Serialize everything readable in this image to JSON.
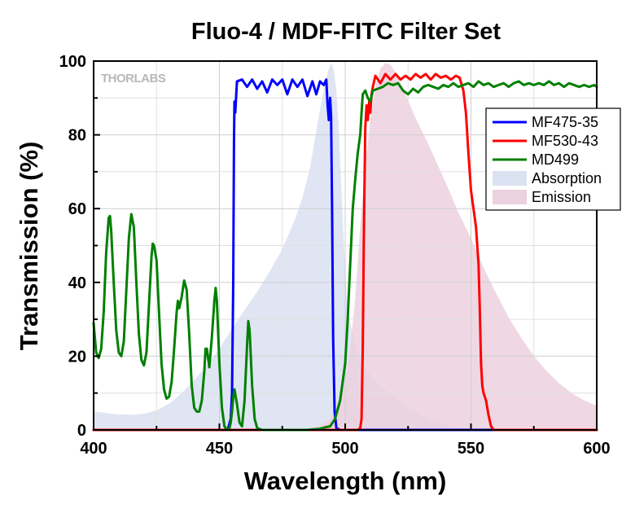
{
  "watermark": "THORLABS",
  "chart_data": {
    "type": "line",
    "title": "Fluo-4 / MDF-FITC Filter Set",
    "xlabel": "Wavelength (nm)",
    "ylabel": "Transmission (%)",
    "xlim": [
      400,
      600
    ],
    "ylim": [
      0,
      100
    ],
    "xticks": [
      400,
      450,
      500,
      550,
      600
    ],
    "yticks": [
      0,
      20,
      40,
      60,
      80,
      100
    ],
    "grid": true,
    "legend_position": "right",
    "series": [
      {
        "name": "MF475-35",
        "kind": "line",
        "color": "#0000ff",
        "points": [
          [
            400,
            0
          ],
          [
            452,
            0
          ],
          [
            453.5,
            0.5
          ],
          [
            454.5,
            3
          ],
          [
            455,
            10
          ],
          [
            455.5,
            40
          ],
          [
            455.8,
            78
          ],
          [
            456,
            89
          ],
          [
            456.3,
            86
          ],
          [
            456.7,
            91
          ],
          [
            457,
            94.5
          ],
          [
            459,
            95
          ],
          [
            461,
            93
          ],
          [
            463,
            95
          ],
          [
            465,
            92.5
          ],
          [
            467,
            94.5
          ],
          [
            469,
            91.5
          ],
          [
            471,
            95
          ],
          [
            473,
            93.5
          ],
          [
            475,
            95
          ],
          [
            477,
            91
          ],
          [
            479,
            95
          ],
          [
            481,
            93
          ],
          [
            483,
            95
          ],
          [
            485,
            90.5
          ],
          [
            487,
            94.5
          ],
          [
            488.5,
            91
          ],
          [
            490,
            94.5
          ],
          [
            491.5,
            93.5
          ],
          [
            492.5,
            95
          ],
          [
            493,
            88
          ],
          [
            493.5,
            84
          ],
          [
            494,
            90
          ],
          [
            494.4,
            85
          ],
          [
            494.8,
            60
          ],
          [
            495.2,
            25
          ],
          [
            495.8,
            5
          ],
          [
            496.5,
            0.5
          ],
          [
            498,
            0
          ],
          [
            600,
            0
          ]
        ]
      },
      {
        "name": "MF530-43",
        "kind": "line",
        "color": "#ff0000",
        "points": [
          [
            400,
            0
          ],
          [
            505,
            0
          ],
          [
            506,
            0.5
          ],
          [
            506.5,
            3
          ],
          [
            507,
            22
          ],
          [
            507.5,
            58
          ],
          [
            508,
            82
          ],
          [
            508.5,
            88
          ],
          [
            509,
            84
          ],
          [
            509.5,
            89
          ],
          [
            510,
            86
          ],
          [
            510.5,
            91
          ],
          [
            511,
            93
          ],
          [
            512,
            96
          ],
          [
            514,
            94
          ],
          [
            516,
            96.5
          ],
          [
            518,
            95
          ],
          [
            520,
            96.5
          ],
          [
            522,
            95
          ],
          [
            524,
            96
          ],
          [
            526,
            95
          ],
          [
            528,
            96.5
          ],
          [
            530,
            95.5
          ],
          [
            532,
            96.5
          ],
          [
            534,
            95
          ],
          [
            536,
            96.5
          ],
          [
            538,
            95.5
          ],
          [
            540,
            96
          ],
          [
            542,
            95
          ],
          [
            544,
            96
          ],
          [
            545.5,
            95.5
          ],
          [
            547,
            92
          ],
          [
            548,
            86
          ],
          [
            549,
            75
          ],
          [
            550,
            65
          ],
          [
            551,
            60
          ],
          [
            552,
            55
          ],
          [
            553,
            45
          ],
          [
            553.5,
            33
          ],
          [
            554,
            18
          ],
          [
            554.5,
            12
          ],
          [
            555,
            10
          ],
          [
            556,
            8
          ],
          [
            557,
            4
          ],
          [
            558,
            1
          ],
          [
            559,
            0
          ],
          [
            600,
            0
          ]
        ]
      },
      {
        "name": "MD499",
        "kind": "line",
        "color": "#008000",
        "points": [
          [
            400,
            29
          ],
          [
            401,
            21
          ],
          [
            402,
            19.5
          ],
          [
            403,
            22
          ],
          [
            404,
            32
          ],
          [
            405,
            48
          ],
          [
            406,
            57.5
          ],
          [
            406.5,
            58
          ],
          [
            407,
            54
          ],
          [
            408,
            40
          ],
          [
            409,
            27
          ],
          [
            410,
            21
          ],
          [
            411,
            20
          ],
          [
            412,
            24
          ],
          [
            413,
            38
          ],
          [
            414,
            52
          ],
          [
            415,
            58.5
          ],
          [
            416,
            55
          ],
          [
            417,
            40
          ],
          [
            418,
            26
          ],
          [
            419,
            19
          ],
          [
            420,
            17.5
          ],
          [
            421,
            21
          ],
          [
            422,
            34
          ],
          [
            423,
            47
          ],
          [
            423.5,
            50.5
          ],
          [
            424,
            50
          ],
          [
            425,
            46
          ],
          [
            426,
            32
          ],
          [
            427,
            18
          ],
          [
            428,
            11
          ],
          [
            429,
            8.5
          ],
          [
            430,
            9
          ],
          [
            431,
            13
          ],
          [
            432,
            22
          ],
          [
            433,
            32
          ],
          [
            433.5,
            35
          ],
          [
            434,
            33
          ],
          [
            435,
            36
          ],
          [
            436,
            40.5
          ],
          [
            437,
            38
          ],
          [
            438,
            26
          ],
          [
            439,
            12
          ],
          [
            440,
            6
          ],
          [
            441,
            5
          ],
          [
            442,
            5
          ],
          [
            443,
            8
          ],
          [
            444,
            16
          ],
          [
            444.5,
            22
          ],
          [
            445,
            22
          ],
          [
            446,
            17
          ],
          [
            447,
            25
          ],
          [
            448,
            35
          ],
          [
            448.5,
            38.5
          ],
          [
            449,
            35
          ],
          [
            450,
            18
          ],
          [
            451,
            6
          ],
          [
            452,
            1
          ],
          [
            453,
            0
          ],
          [
            454,
            0.5
          ],
          [
            454.5,
            2
          ],
          [
            455,
            5
          ],
          [
            455.5,
            9
          ],
          [
            456,
            11
          ],
          [
            457,
            7
          ],
          [
            458,
            2
          ],
          [
            459,
            1
          ],
          [
            460,
            8
          ],
          [
            461,
            23
          ],
          [
            461.5,
            29.5
          ],
          [
            462,
            27
          ],
          [
            463,
            12
          ],
          [
            464,
            3
          ],
          [
            465,
            0.5
          ],
          [
            467,
            0
          ],
          [
            485,
            0
          ],
          [
            490,
            0.3
          ],
          [
            492,
            0.7
          ],
          [
            494,
            1
          ],
          [
            496,
            3
          ],
          [
            498,
            8
          ],
          [
            500,
            18
          ],
          [
            501,
            30
          ],
          [
            502,
            45
          ],
          [
            503,
            60
          ],
          [
            504,
            68
          ],
          [
            505,
            75
          ],
          [
            506,
            80
          ],
          [
            506.5,
            86
          ],
          [
            507,
            91
          ],
          [
            508,
            92
          ],
          [
            509,
            90
          ],
          [
            510,
            89
          ],
          [
            511,
            92
          ],
          [
            513,
            92.5
          ],
          [
            515,
            93
          ],
          [
            517,
            94
          ],
          [
            519,
            93.5
          ],
          [
            521,
            94
          ],
          [
            523,
            92
          ],
          [
            525,
            91
          ],
          [
            527,
            92.5
          ],
          [
            529,
            91.5
          ],
          [
            531,
            93
          ],
          [
            533,
            93.5
          ],
          [
            535,
            93
          ],
          [
            537,
            92.5
          ],
          [
            539,
            93.5
          ],
          [
            541,
            93
          ],
          [
            543,
            94
          ],
          [
            545,
            93
          ],
          [
            547,
            93.5
          ],
          [
            549,
            94
          ],
          [
            551,
            93
          ],
          [
            553,
            94.5
          ],
          [
            555,
            93.5
          ],
          [
            557,
            94
          ],
          [
            559,
            93
          ],
          [
            561,
            93.5
          ],
          [
            563,
            94
          ],
          [
            565,
            93
          ],
          [
            567,
            94
          ],
          [
            569,
            94.5
          ],
          [
            571,
            93.5
          ],
          [
            573,
            94
          ],
          [
            575,
            93.5
          ],
          [
            577,
            94
          ],
          [
            579,
            93.5
          ],
          [
            581,
            94.5
          ],
          [
            583,
            93.5
          ],
          [
            585,
            94
          ],
          [
            587,
            93
          ],
          [
            589,
            94
          ],
          [
            591,
            93.5
          ],
          [
            593,
            93
          ],
          [
            595,
            93.5
          ],
          [
            597,
            93
          ],
          [
            599,
            93.5
          ],
          [
            600,
            93
          ]
        ]
      },
      {
        "name": "Absorption",
        "kind": "area",
        "color": "#dae1f1",
        "points": [
          [
            400,
            5
          ],
          [
            405,
            4.6
          ],
          [
            410,
            4.2
          ],
          [
            415,
            4.1
          ],
          [
            420,
            4.4
          ],
          [
            425,
            5.3
          ],
          [
            430,
            7.1
          ],
          [
            435,
            10
          ],
          [
            440,
            13.5
          ],
          [
            445,
            17.5
          ],
          [
            450,
            22
          ],
          [
            455,
            27.5
          ],
          [
            460,
            32.5
          ],
          [
            465,
            37.5
          ],
          [
            470,
            43
          ],
          [
            475,
            49
          ],
          [
            480,
            57
          ],
          [
            483,
            63
          ],
          [
            486,
            71
          ],
          [
            488,
            79
          ],
          [
            490,
            87
          ],
          [
            492,
            94
          ],
          [
            493.5,
            98
          ],
          [
            494.5,
            99.5
          ],
          [
            495.5,
            97.5
          ],
          [
            496.5,
            92
          ],
          [
            497.5,
            81
          ],
          [
            498.5,
            65
          ],
          [
            499.5,
            50
          ],
          [
            500.5,
            38
          ],
          [
            502,
            29
          ],
          [
            504,
            23
          ],
          [
            506,
            19.5
          ],
          [
            508,
            17
          ],
          [
            510,
            15
          ],
          [
            515,
            11.5
          ],
          [
            520,
            8.5
          ],
          [
            525,
            6
          ],
          [
            530,
            4
          ],
          [
            535,
            2.3
          ],
          [
            540,
            1.2
          ],
          [
            545,
            0.6
          ],
          [
            550,
            0.3
          ],
          [
            560,
            0
          ],
          [
            600,
            0
          ]
        ]
      },
      {
        "name": "Emission",
        "kind": "area",
        "color": "#ecd1de",
        "points": [
          [
            400,
            0
          ],
          [
            480,
            0
          ],
          [
            485,
            0.3
          ],
          [
            490,
            1.2
          ],
          [
            494,
            3
          ],
          [
            497,
            6.5
          ],
          [
            500,
            13
          ],
          [
            502,
            22
          ],
          [
            504,
            36
          ],
          [
            506,
            55
          ],
          [
            508,
            72
          ],
          [
            510,
            84
          ],
          [
            512,
            93
          ],
          [
            514,
            98
          ],
          [
            516,
            99.5
          ],
          [
            518,
            99
          ],
          [
            520,
            97
          ],
          [
            524,
            91
          ],
          [
            528,
            84.5
          ],
          [
            532,
            79
          ],
          [
            536,
            73
          ],
          [
            540,
            67
          ],
          [
            545,
            59
          ],
          [
            550,
            52
          ],
          [
            555,
            44
          ],
          [
            560,
            37
          ],
          [
            565,
            30.5
          ],
          [
            570,
            25
          ],
          [
            575,
            20
          ],
          [
            580,
            16
          ],
          [
            585,
            12.7
          ],
          [
            590,
            10
          ],
          [
            595,
            8
          ],
          [
            600,
            6.5
          ]
        ]
      }
    ]
  }
}
